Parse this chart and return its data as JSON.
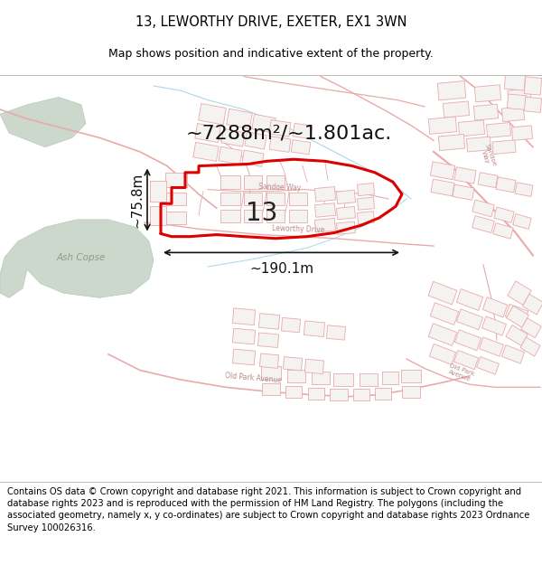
{
  "title_line1": "13, LEWORTHY DRIVE, EXETER, EX1 3WN",
  "title_line2": "Map shows position and indicative extent of the property.",
  "area_text": "~7288m²/~1.801ac.",
  "width_text": "~190.1m",
  "height_text": "~75.8m",
  "label_13": "13",
  "footer_text": "Contains OS data © Crown copyright and database right 2021. This information is subject to Crown copyright and database rights 2023 and is reproduced with the permission of HM Land Registry. The polygons (including the associated geometry, namely x, y co-ordinates) are subject to Crown copyright and database rights 2023 Ordnance Survey 100026316.",
  "map_bg": "#f8f6f4",
  "highlight_color": "#dd0000",
  "street_color": "#e8aaaa",
  "road_outline_color": "#e8aaaa",
  "green_color": "#ccd8cc",
  "green_edge": "#b8c8b8",
  "water_color": "#c8e8f0",
  "title_fontsize": 10.5,
  "subtitle_fontsize": 9,
  "footer_fontsize": 7.2,
  "area_fontsize": 16,
  "dim_fontsize": 11,
  "label_fontsize": 20,
  "street_label_fontsize": 6.5
}
